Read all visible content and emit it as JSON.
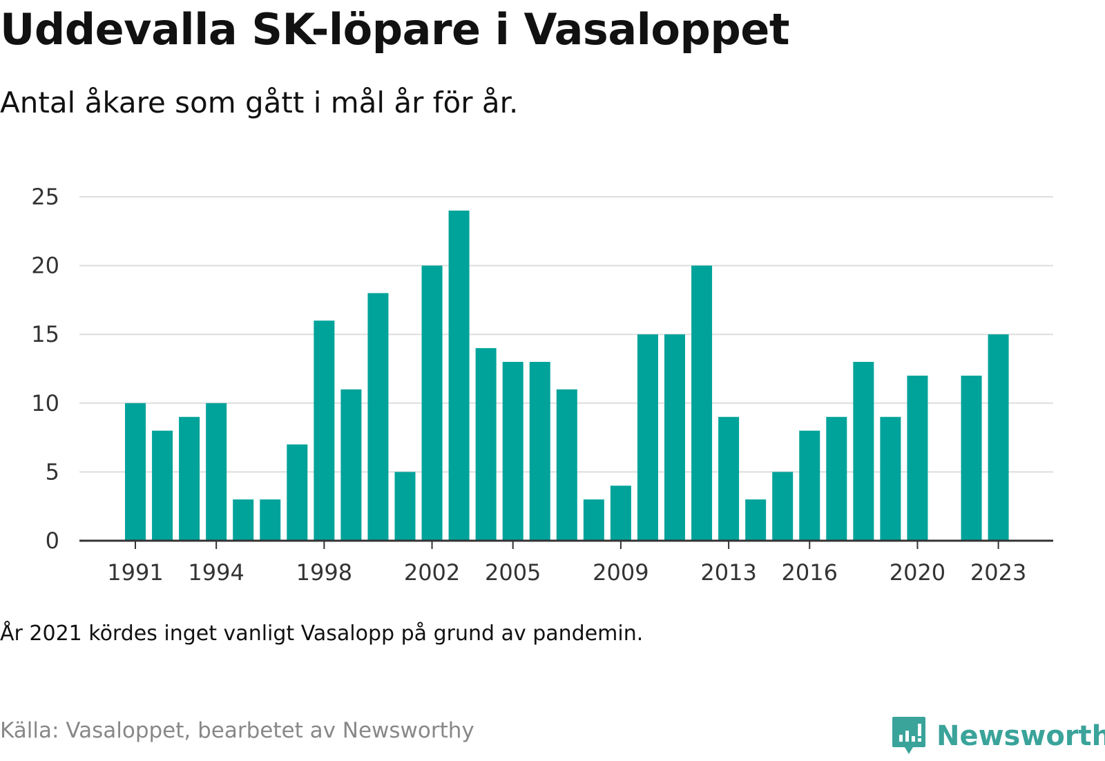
{
  "title": "Uddevalla SK-löpare i Vasaloppet",
  "subtitle": "Antal åkare som gått i mål år för år.",
  "note": "År 2021 kördes inget vanligt Vasalopp på grund av pandemin.",
  "source": "Källa: Vasaloppet, bearbetet av Newsworthy",
  "logo": {
    "text": "Newsworthy",
    "icon": "newsworthy-logo-icon"
  },
  "colors": {
    "bar": "#00a39a",
    "grid": "#dddddd",
    "axis": "#333333",
    "logo": "#3aa39a"
  },
  "chart_data": {
    "type": "bar",
    "title": "",
    "xlabel": "",
    "ylabel": "",
    "ylim": [
      0,
      25
    ],
    "yticks": [
      0,
      5,
      10,
      15,
      20,
      25
    ],
    "xticks": [
      "1991",
      "1994",
      "1998",
      "2002",
      "2005",
      "2009",
      "2013",
      "2016",
      "2020",
      "2023"
    ],
    "grid": true,
    "categories": [
      "1991",
      "1992",
      "1993",
      "1994",
      "1995",
      "1996",
      "1997",
      "1998",
      "1999",
      "2000",
      "2001",
      "2002",
      "2003",
      "2004",
      "2005",
      "2006",
      "2007",
      "2008",
      "2009",
      "2010",
      "2011",
      "2012",
      "2013",
      "2014",
      "2015",
      "2016",
      "2017",
      "2018",
      "2019",
      "2020",
      "2021",
      "2022",
      "2023"
    ],
    "values": [
      10,
      8,
      9,
      10,
      3,
      3,
      7,
      16,
      11,
      18,
      5,
      20,
      24,
      14,
      13,
      13,
      11,
      3,
      4,
      15,
      15,
      20,
      9,
      3,
      5,
      8,
      9,
      13,
      9,
      12,
      null,
      12,
      15
    ]
  }
}
